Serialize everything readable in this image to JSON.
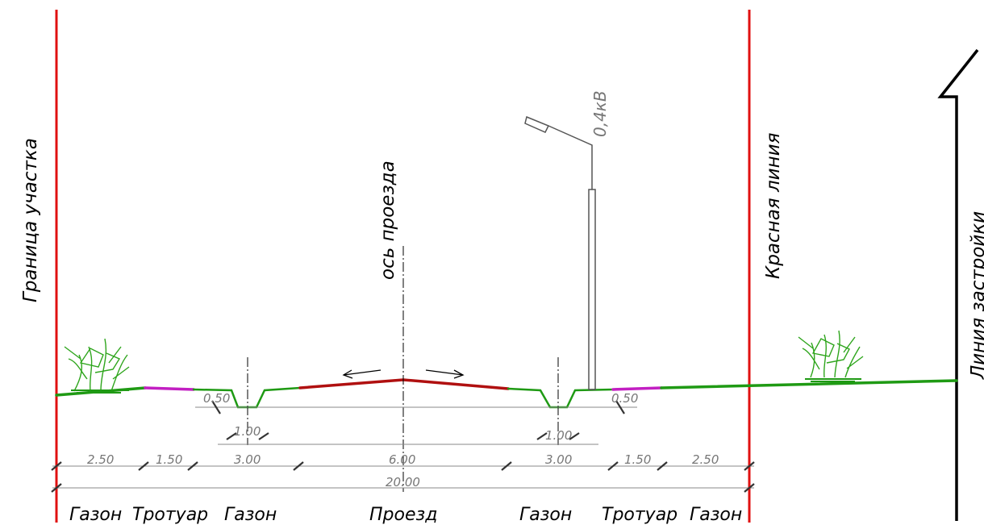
{
  "labels": {
    "site_boundary": "Граница участка",
    "road_axis": "ось проезда",
    "red_line": "Красная линия",
    "building_line": "Линия застройки",
    "voltage": "0,4кВ"
  },
  "dimensions": {
    "slope_left": "0.50",
    "slope_right": "0.50",
    "ditch_left": "1.00",
    "ditch_right": "1.00",
    "widths": [
      "2.50",
      "1.50",
      "3.00",
      "6.00",
      "3.00",
      "1.50",
      "2.50"
    ],
    "total": "20.00"
  },
  "zones": [
    "Газон",
    "Тротуар",
    "Газон",
    "Проезд",
    "Газон",
    "Тротуар",
    "Газон"
  ],
  "colors": {
    "boundary": "#e01010",
    "lawn": "#1f9a14",
    "sidewalk": "#c21fc2",
    "road": "#b01010",
    "dimension": "#888888",
    "pole": "#555555",
    "building": "#000000"
  }
}
